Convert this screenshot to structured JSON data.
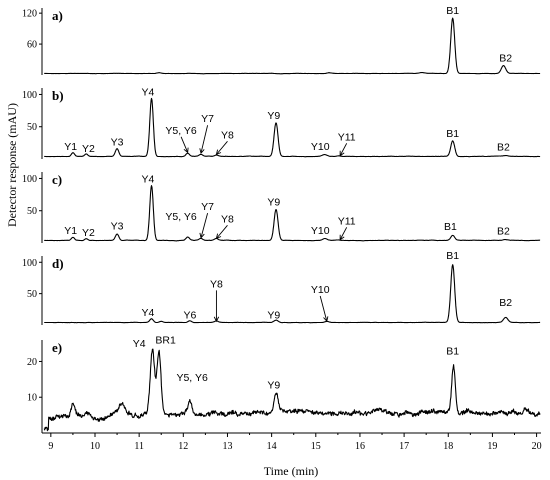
{
  "chart_data": {
    "type": "line",
    "xlabel": "Time (min)",
    "ylabel": "Detector response (mAU)",
    "xlim": [
      8.8,
      20.1
    ],
    "x_ticks": [
      9,
      10,
      11,
      12,
      13,
      14,
      15,
      16,
      17,
      18,
      19,
      20
    ],
    "panels": [
      {
        "label": "a)",
        "ylim": [
          0,
          130
        ],
        "y_ticks": [
          60,
          120
        ],
        "baseline": 3,
        "noise": 0.4,
        "peaks": [
          {
            "t": 11.45,
            "h": 1.5,
            "w": 0.05
          },
          {
            "t": 15.3,
            "h": 1.5,
            "w": 0.05
          },
          {
            "t": 17.4,
            "h": 1.5,
            "w": 0.05
          },
          {
            "t": 18.1,
            "h": 107,
            "w": 0.045,
            "label": "B1"
          },
          {
            "t": 19.25,
            "h": 15,
            "w": 0.05,
            "label": "B2"
          }
        ]
      },
      {
        "label": "b)",
        "ylim": [
          0,
          110
        ],
        "y_ticks": [
          50,
          100
        ],
        "baseline": 4,
        "noise": 0.5,
        "peaks": [
          {
            "t": 9.5,
            "h": 6,
            "w": 0.035,
            "label": "Y1"
          },
          {
            "t": 9.8,
            "h": 4,
            "w": 0.035,
            "label": "Y2"
          },
          {
            "t": 10.5,
            "h": 12,
            "w": 0.04,
            "label": "Y3"
          },
          {
            "t": 11.28,
            "h": 90,
            "w": 0.04,
            "label": "Y4"
          },
          {
            "t": 12.1,
            "h": 5,
            "w": 0.04,
            "label": "Y5, Y6"
          },
          {
            "t": 12.4,
            "h": 3,
            "w": 0.04,
            "label": "Y7"
          },
          {
            "t": 12.75,
            "h": 2,
            "w": 0.04,
            "label": "Y8"
          },
          {
            "t": 14.1,
            "h": 52,
            "w": 0.045,
            "label": "Y9"
          },
          {
            "t": 15.2,
            "h": 3,
            "w": 0.05,
            "label": "Y10"
          },
          {
            "t": 15.5,
            "h": 1,
            "w": 0.05,
            "label": "Y11"
          },
          {
            "t": 18.1,
            "h": 24,
            "w": 0.045,
            "label": "B1"
          },
          {
            "t": 19.3,
            "h": 1,
            "w": 0.05,
            "label": "B2"
          }
        ]
      },
      {
        "label": "c)",
        "ylim": [
          0,
          110
        ],
        "y_ticks": [
          50,
          100
        ],
        "baseline": 4,
        "noise": 0.5,
        "peaks": [
          {
            "t": 9.5,
            "h": 5,
            "w": 0.035,
            "label": "Y1"
          },
          {
            "t": 9.8,
            "h": 3,
            "w": 0.035,
            "label": "Y2"
          },
          {
            "t": 10.5,
            "h": 10,
            "w": 0.04,
            "label": "Y3"
          },
          {
            "t": 11.28,
            "h": 85,
            "w": 0.04,
            "label": "Y4"
          },
          {
            "t": 12.1,
            "h": 5,
            "w": 0.04,
            "label": "Y5, Y6"
          },
          {
            "t": 12.4,
            "h": 3,
            "w": 0.04,
            "label": "Y7"
          },
          {
            "t": 12.75,
            "h": 3,
            "w": 0.04,
            "label": "Y8"
          },
          {
            "t": 14.1,
            "h": 48,
            "w": 0.045,
            "label": "Y9"
          },
          {
            "t": 15.2,
            "h": 3,
            "w": 0.05,
            "label": "Y10"
          },
          {
            "t": 15.5,
            "h": 1,
            "w": 0.05,
            "label": "Y11"
          },
          {
            "t": 18.1,
            "h": 8,
            "w": 0.045,
            "label": "B1"
          },
          {
            "t": 19.3,
            "h": 1,
            "w": 0.05,
            "label": "B2"
          }
        ]
      },
      {
        "label": "d)",
        "ylim": [
          0,
          110
        ],
        "y_ticks": [
          50,
          100
        ],
        "baseline": 4,
        "noise": 0.4,
        "peaks": [
          {
            "t": 11.28,
            "h": 6,
            "w": 0.04,
            "label": "Y4"
          },
          {
            "t": 11.5,
            "h": 2,
            "w": 0.04
          },
          {
            "t": 12.15,
            "h": 3,
            "w": 0.04,
            "label": "Y6"
          },
          {
            "t": 12.75,
            "h": 2,
            "w": 0.04,
            "label": "Y8"
          },
          {
            "t": 14.1,
            "h": 4,
            "w": 0.045,
            "label": "Y9"
          },
          {
            "t": 15.25,
            "h": 2,
            "w": 0.05,
            "label": "Y10"
          },
          {
            "t": 18.1,
            "h": 92,
            "w": 0.045,
            "label": "B1"
          },
          {
            "t": 19.3,
            "h": 8,
            "w": 0.05,
            "label": "B2"
          }
        ]
      },
      {
        "label": "e)",
        "ylim": [
          0,
          26
        ],
        "y_ticks": [
          10,
          20
        ],
        "baseline": 4.5,
        "noise": 0.9,
        "peaks": [
          {
            "t": 9.5,
            "h": 3.5,
            "w": 0.04
          },
          {
            "t": 10.6,
            "h": 2.5,
            "w": 0.08
          },
          {
            "t": 11.3,
            "h": 18,
            "w": 0.05,
            "label": "Y4"
          },
          {
            "t": 11.45,
            "h": 17.5,
            "w": 0.045,
            "label": "BR1"
          },
          {
            "t": 12.15,
            "h": 4,
            "w": 0.045,
            "label": "Y5, Y6"
          },
          {
            "t": 14.1,
            "h": 5,
            "w": 0.045,
            "label": "Y9"
          },
          {
            "t": 18.12,
            "h": 13.5,
            "w": 0.04,
            "label": "B1"
          }
        ]
      }
    ],
    "annotations": [
      {
        "panel": 0,
        "text": "B1",
        "at": 18.1,
        "level": 118,
        "arrow": false
      },
      {
        "panel": 0,
        "text": "B2",
        "at": 19.3,
        "level": 26,
        "arrow": false
      },
      {
        "panel": 1,
        "text": "Y1",
        "at": 9.45,
        "level": 14,
        "arrow": false
      },
      {
        "panel": 1,
        "text": "Y2",
        "at": 9.85,
        "level": 11,
        "arrow": false
      },
      {
        "panel": 1,
        "text": "Y3",
        "at": 10.5,
        "level": 21,
        "arrow": false
      },
      {
        "panel": 1,
        "text": "Y4",
        "at": 11.2,
        "level": 98,
        "arrow": false
      },
      {
        "panel": 1,
        "text": "Y5, Y6",
        "at": 11.95,
        "level": 39,
        "arrow": true,
        "arrow_to": [
          12.1,
          10
        ]
      },
      {
        "panel": 1,
        "text": "Y7",
        "at": 12.55,
        "level": 57,
        "arrow": true,
        "arrow_to": [
          12.4,
          9
        ]
      },
      {
        "panel": 1,
        "text": "Y8",
        "at": 13.0,
        "level": 32,
        "arrow": true,
        "arrow_to": [
          12.75,
          7
        ]
      },
      {
        "panel": 1,
        "text": "Y9",
        "at": 14.05,
        "level": 62,
        "arrow": false
      },
      {
        "panel": 1,
        "text": "Y10",
        "at": 15.1,
        "level": 14,
        "arrow": false
      },
      {
        "panel": 1,
        "text": "Y11",
        "at": 15.7,
        "level": 29,
        "arrow": true,
        "arrow_to": [
          15.55,
          5
        ]
      },
      {
        "panel": 1,
        "text": "B1",
        "at": 18.1,
        "level": 34,
        "arrow": false
      },
      {
        "panel": 1,
        "text": "B2",
        "at": 19.25,
        "level": 13,
        "arrow": false
      },
      {
        "panel": 2,
        "text": "Y1",
        "at": 9.45,
        "level": 14,
        "arrow": false
      },
      {
        "panel": 2,
        "text": "Y2",
        "at": 9.85,
        "level": 11,
        "arrow": false
      },
      {
        "panel": 2,
        "text": "Y3",
        "at": 10.5,
        "level": 21,
        "arrow": false
      },
      {
        "panel": 2,
        "text": "Y4",
        "at": 11.2,
        "level": 94,
        "arrow": false
      },
      {
        "panel": 2,
        "text": "Y5, Y6",
        "at": 11.95,
        "level": 36,
        "arrow": false
      },
      {
        "panel": 2,
        "text": "Y7",
        "at": 12.55,
        "level": 51,
        "arrow": true,
        "arrow_to": [
          12.4,
          8
        ]
      },
      {
        "panel": 2,
        "text": "Y8",
        "at": 13.0,
        "level": 32,
        "arrow": true,
        "arrow_to": [
          12.75,
          7
        ]
      },
      {
        "panel": 2,
        "text": "Y9",
        "at": 14.05,
        "level": 58,
        "arrow": false
      },
      {
        "panel": 2,
        "text": "Y10",
        "at": 15.1,
        "level": 14,
        "arrow": false
      },
      {
        "panel": 2,
        "text": "Y11",
        "at": 15.7,
        "level": 29,
        "arrow": true,
        "arrow_to": [
          15.55,
          5
        ]
      },
      {
        "panel": 2,
        "text": "B1",
        "at": 18.05,
        "level": 20,
        "arrow": false
      },
      {
        "panel": 2,
        "text": "B2",
        "at": 19.25,
        "level": 13,
        "arrow": false
      },
      {
        "panel": 3,
        "text": "Y4",
        "at": 11.2,
        "level": 14,
        "arrow": false
      },
      {
        "panel": 3,
        "text": "Y6",
        "at": 12.15,
        "level": 10,
        "arrow": false
      },
      {
        "panel": 3,
        "text": "Y8",
        "at": 12.75,
        "level": 60,
        "arrow": true,
        "arrow_to": [
          12.75,
          6
        ]
      },
      {
        "panel": 3,
        "text": "Y9",
        "at": 14.05,
        "level": 10,
        "arrow": false
      },
      {
        "panel": 3,
        "text": "Y10",
        "at": 15.1,
        "level": 51,
        "arrow": true,
        "arrow_to": [
          15.25,
          6
        ]
      },
      {
        "panel": 3,
        "text": "B1",
        "at": 18.1,
        "level": 105,
        "arrow": false
      },
      {
        "panel": 3,
        "text": "B2",
        "at": 19.3,
        "level": 30,
        "arrow": false
      },
      {
        "panel": 4,
        "text": "Y4",
        "at": 11.0,
        "level": 24,
        "arrow": false
      },
      {
        "panel": 4,
        "text": "BR1",
        "at": 11.6,
        "level": 25,
        "arrow": false
      },
      {
        "panel": 4,
        "text": "Y5, Y6",
        "at": 12.2,
        "level": 14.5,
        "arrow": false
      },
      {
        "panel": 4,
        "text": "Y9",
        "at": 14.05,
        "level": 12.5,
        "arrow": false
      },
      {
        "panel": 4,
        "text": "B1",
        "at": 18.1,
        "level": 22,
        "arrow": false
      }
    ]
  }
}
